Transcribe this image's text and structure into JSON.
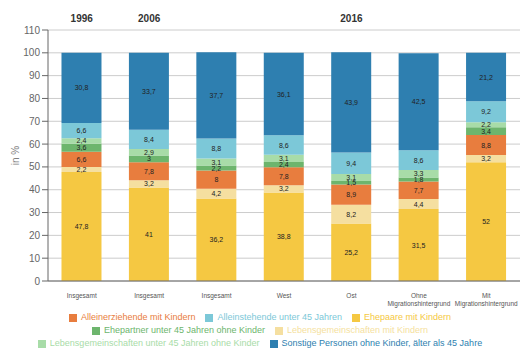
{
  "chart_data": {
    "type": "bar",
    "stacked": true,
    "data_labels": true,
    "grid": true,
    "legend": "bottom",
    "ylabel": "in %",
    "categories": [
      "Insgesamt",
      "Insgesamt",
      "Insgesamt",
      "West",
      "Ost",
      "Ohne Migrationshintergrund",
      "Mit Migrationshintergrund"
    ],
    "annotations": [
      {
        "text": "1996",
        "x": 0
      },
      {
        "text": "2006",
        "x": 1
      },
      {
        "text": "2016",
        "x": 4
      }
    ],
    "ylim": [
      0,
      110
    ],
    "yticks": [
      0,
      10,
      20,
      30,
      40,
      50,
      60,
      70,
      80,
      90,
      100,
      110
    ],
    "series": [
      {
        "name": "Ehepaare mit Kindern",
        "color": "#F5C842",
        "values": [
          47.8,
          41.0,
          36.2,
          38.8,
          25.2,
          31.5,
          52.0
        ],
        "value_labels": [
          "47,8",
          "41",
          "36,2",
          "38,8",
          "25,2",
          "31,5",
          "52"
        ]
      },
      {
        "name": "Lebensgemeinschaften mit Kindern",
        "color": "#F5DFA0",
        "values": [
          2.2,
          3.2,
          4.2,
          3.2,
          8.2,
          4.4,
          3.2
        ],
        "value_labels": [
          "2,2",
          "3,2",
          "4,2",
          "3,2",
          "8,2",
          "4,4",
          "3,2"
        ]
      },
      {
        "name": "Alleinerziehende mit Kindern",
        "color": "#E87D3E",
        "values": [
          6.6,
          7.8,
          8.0,
          7.8,
          8.9,
          7.7,
          8.8
        ],
        "value_labels": [
          "6,6",
          "7,8",
          "8",
          "7,8",
          "8,9",
          "7,7",
          "8,8"
        ]
      },
      {
        "name": "Ehepartner unter 45 Jahren ohne Kinder",
        "color": "#6DB56D",
        "values": [
          3.6,
          3.0,
          2.2,
          2.4,
          1.5,
          1.8,
          3.4
        ],
        "value_labels": [
          "3,6",
          "3",
          "2,2",
          "2,4",
          "1,5",
          "1,8",
          "3,4"
        ]
      },
      {
        "name": "Lebensgemeinschaften unter 45 Jahren ohne Kinder",
        "color": "#A8DCA8",
        "values": [
          2.4,
          2.9,
          3.1,
          3.1,
          3.1,
          3.3,
          2.2
        ],
        "value_labels": [
          "2,4",
          "2,9",
          "3,1",
          "3,1",
          "3,1",
          "3,3",
          "2,2"
        ]
      },
      {
        "name": "Alleinstehende unter 45 Jahren",
        "color": "#7CC8D8",
        "values": [
          6.6,
          8.4,
          8.8,
          8.6,
          9.4,
          8.6,
          9.2
        ],
        "value_labels": [
          "6,6",
          "8,4",
          "8,8",
          "8,6",
          "9,4",
          "8,6",
          "9,2"
        ]
      },
      {
        "name": "Sonstige Personen ohne Kinder, älter als 45 Jahre",
        "color": "#2E7FB0",
        "values": [
          30.8,
          33.7,
          37.7,
          36.1,
          43.9,
          42.5,
          21.2
        ],
        "value_labels": [
          "30,8",
          "33,7",
          "37,7",
          "36,1",
          "43,9",
          "42,5",
          "21,2"
        ]
      }
    ]
  }
}
